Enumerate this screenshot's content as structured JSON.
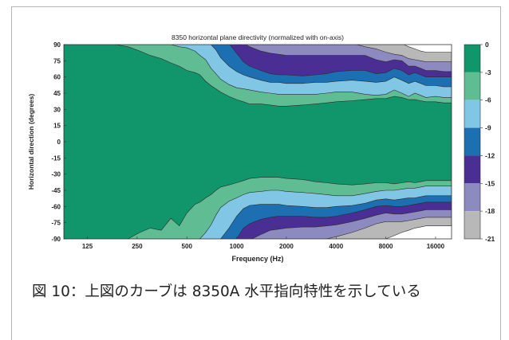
{
  "chart_data": {
    "type": "heatmap",
    "subtype": "filled-contour",
    "title": "8350 horizontal plane directivity (normalized with on-axis)",
    "xlabel": "Frequency (Hz)",
    "ylabel": "Horizontal direction (degrees)",
    "x_scale": "log",
    "xlim": [
      90,
      20000
    ],
    "ylim": [
      -90,
      90
    ],
    "x_ticks": [
      125,
      250,
      500,
      1000,
      2000,
      4000,
      8000,
      16000
    ],
    "x_tick_labels": [
      "125",
      "250",
      "500",
      "1000",
      "2000",
      "4000",
      "8000",
      "16000"
    ],
    "y_ticks": [
      90,
      75,
      60,
      45,
      30,
      15,
      0,
      -15,
      -30,
      -45,
      -60,
      -75,
      -90
    ],
    "y_tick_labels": [
      "90",
      "75",
      "60",
      "45",
      "30",
      "15",
      "0",
      "-15",
      "-30",
      "-45",
      "-60",
      "-75",
      "-90"
    ],
    "colorbar": {
      "levels": [
        0,
        -3,
        -6,
        -9,
        -12,
        -15,
        -18,
        -21
      ],
      "labels": [
        "0",
        "-3",
        "-6",
        "-9",
        "-12",
        "-15",
        "-18",
        "-21"
      ],
      "colors": [
        "#11956b",
        "#5fbc93",
        "#82c6e6",
        "#1c6fb0",
        "#4b2e94",
        "#8d8ac0",
        "#b8b8b8"
      ]
    },
    "contours": {
      "frequencies": [
        90,
        125,
        170,
        220,
        260,
        300,
        350,
        400,
        450,
        500,
        560,
        600,
        650,
        700,
        750,
        800,
        900,
        1000,
        1100,
        1200,
        1400,
        1600,
        1800,
        2000,
        2500,
        3000,
        3500,
        4000,
        5000,
        6000,
        7000,
        8000,
        9000,
        10000,
        11000,
        12000,
        13000,
        14000,
        16000,
        18000,
        20000
      ],
      "top": {
        "-3": [
          91,
          91,
          91,
          88,
          84,
          80,
          77,
          73,
          70,
          66,
          64,
          62,
          56,
          52,
          49,
          46,
          42,
          39,
          37,
          35,
          35,
          34,
          33,
          33,
          34,
          35,
          36,
          37,
          38,
          39,
          40,
          40,
          42,
          41,
          39,
          39,
          38,
          37,
          37,
          36,
          36
        ],
        "-6": [
          91,
          91,
          91,
          91,
          91,
          91,
          91,
          90,
          88,
          87,
          84,
          80,
          76,
          68,
          63,
          58,
          53,
          50,
          49,
          48,
          46,
          45,
          44,
          44,
          44,
          44,
          45,
          46,
          46,
          44,
          43,
          44,
          48,
          45,
          42,
          45,
          43,
          41,
          42,
          41,
          41
        ],
        "-9": [
          91,
          91,
          91,
          91,
          91,
          91,
          91,
          91,
          91,
          91,
          91,
          91,
          91,
          90,
          85,
          78,
          70,
          65,
          62,
          60,
          57,
          55,
          55,
          54,
          54,
          55,
          55,
          56,
          57,
          56,
          55,
          56,
          60,
          57,
          54,
          56,
          54,
          52,
          52,
          51,
          51
        ],
        "-12": [
          91,
          91,
          91,
          91,
          91,
          91,
          91,
          91,
          91,
          91,
          91,
          91,
          91,
          91,
          91,
          91,
          91,
          82,
          74,
          70,
          66,
          63,
          62,
          62,
          61,
          62,
          63,
          65,
          66,
          66,
          63,
          64,
          68,
          66,
          62,
          64,
          62,
          60,
          60,
          60,
          60
        ],
        "-15": [
          91,
          91,
          91,
          91,
          91,
          91,
          91,
          91,
          91,
          91,
          91,
          91,
          91,
          91,
          91,
          91,
          91,
          91,
          91,
          88,
          84,
          82,
          81,
          80,
          80,
          80,
          80,
          80,
          80,
          80,
          76,
          74,
          76,
          75,
          70,
          70,
          68,
          66,
          66,
          65,
          65
        ],
        "-18": [
          91,
          91,
          91,
          91,
          91,
          91,
          91,
          91,
          91,
          91,
          91,
          91,
          91,
          91,
          91,
          91,
          91,
          91,
          91,
          91,
          91,
          91,
          91,
          91,
          91,
          91,
          91,
          91,
          91,
          88,
          86,
          83,
          81,
          80,
          77,
          76,
          75,
          74,
          74,
          74,
          74
        ],
        "-21": [
          91,
          91,
          91,
          91,
          91,
          91,
          91,
          91,
          91,
          91,
          91,
          91,
          91,
          91,
          91,
          91,
          91,
          91,
          91,
          91,
          91,
          91,
          91,
          91,
          91,
          91,
          91,
          91,
          91,
          91,
          91,
          91,
          91,
          91,
          88,
          86,
          84,
          83,
          83,
          83,
          83
        ]
      },
      "bottom": {
        "-3": [
          -91,
          -91,
          -91,
          -90,
          -84,
          -80,
          -82,
          -71,
          -78,
          -66,
          -58,
          -56,
          -52,
          -49,
          -45,
          -42,
          -40,
          -38,
          -36,
          -34,
          -33,
          -33,
          -33,
          -34,
          -35,
          -37,
          -38,
          -39,
          -40,
          -39,
          -38,
          -38,
          -39,
          -38,
          -37,
          -38,
          -37,
          -36,
          -36,
          -36,
          -36
        ],
        "-6": [
          -91,
          -91,
          -91,
          -91,
          -91,
          -91,
          -91,
          -91,
          -91,
          -91,
          -91,
          -90,
          -84,
          -77,
          -68,
          -61,
          -55,
          -52,
          -49,
          -47,
          -46,
          -45,
          -45,
          -46,
          -47,
          -48,
          -49,
          -50,
          -50,
          -48,
          -46,
          -45,
          -45,
          -44,
          -43,
          -43,
          -42,
          -41,
          -41,
          -41,
          -41
        ],
        "-9": [
          -91,
          -91,
          -91,
          -91,
          -91,
          -91,
          -91,
          -91,
          -91,
          -91,
          -91,
          -91,
          -91,
          -91,
          -91,
          -90,
          -80,
          -69,
          -62,
          -59,
          -58,
          -58,
          -58,
          -59,
          -60,
          -61,
          -61,
          -60,
          -59,
          -57,
          -54,
          -53,
          -54,
          -53,
          -52,
          -52,
          -51,
          -50,
          -50,
          -50,
          -50
        ],
        "-12": [
          -91,
          -91,
          -91,
          -91,
          -91,
          -91,
          -91,
          -91,
          -91,
          -91,
          -91,
          -91,
          -91,
          -91,
          -91,
          -91,
          -91,
          -90,
          -80,
          -76,
          -72,
          -70,
          -69,
          -69,
          -69,
          -70,
          -70,
          -69,
          -66,
          -63,
          -60,
          -59,
          -60,
          -60,
          -59,
          -58,
          -57,
          -56,
          -56,
          -56,
          -56
        ],
        "-15": [
          -91,
          -91,
          -91,
          -91,
          -91,
          -91,
          -91,
          -91,
          -91,
          -91,
          -91,
          -91,
          -91,
          -91,
          -91,
          -91,
          -91,
          -91,
          -91,
          -91,
          -86,
          -82,
          -81,
          -80,
          -79,
          -79,
          -78,
          -77,
          -74,
          -71,
          -68,
          -66,
          -67,
          -67,
          -66,
          -65,
          -64,
          -63,
          -63,
          -63,
          -63
        ],
        "-18": [
          -91,
          -91,
          -91,
          -91,
          -91,
          -91,
          -91,
          -91,
          -91,
          -91,
          -91,
          -91,
          -91,
          -91,
          -91,
          -91,
          -91,
          -91,
          -91,
          -91,
          -91,
          -91,
          -91,
          -91,
          -91,
          -91,
          -90,
          -88,
          -84,
          -80,
          -76,
          -74,
          -74,
          -74,
          -73,
          -72,
          -71,
          -70,
          -70,
          -70,
          -70
        ],
        "-21": [
          -91,
          -91,
          -91,
          -91,
          -91,
          -91,
          -91,
          -91,
          -91,
          -91,
          -91,
          -91,
          -91,
          -91,
          -91,
          -91,
          -91,
          -91,
          -91,
          -91,
          -91,
          -91,
          -91,
          -91,
          -91,
          -91,
          -91,
          -91,
          -91,
          -91,
          -91,
          -90,
          -87,
          -84,
          -82,
          -80,
          -79,
          -78,
          -78,
          -78,
          -78
        ]
      }
    }
  },
  "caption": "図 10：上図のカーブは 8350A 水平指向特性を示している"
}
